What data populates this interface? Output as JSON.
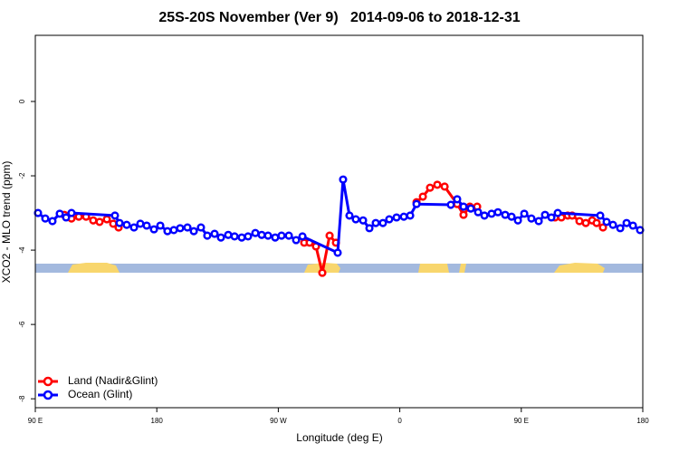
{
  "chart_data": {
    "type": "line",
    "title": "25S-20S November (Ver 9)   2014-09-06 to 2018-12-31",
    "x_label": "Longitude (deg E)",
    "y_label": "XCO2 - MLO trend (ppm)",
    "xlim": [
      90,
      540
    ],
    "xticks": [
      {
        "value": 90,
        "label": "90 E"
      },
      180,
      {
        "value": 270,
        "label": "90 W"
      },
      {
        "value": 360,
        "label": "0"
      },
      {
        "value": 450,
        "label": "90 E"
      },
      {
        "value": 540,
        "label": "180"
      }
    ],
    "ylim": [
      -8.24,
      1.78
    ],
    "yticks": [
      0,
      -2,
      -4,
      -6,
      -8
    ],
    "legend": "bottomleft",
    "series": [
      {
        "name": "Land (Nadir&Glint)",
        "color": "#ff0000",
        "x": [
          111.5,
          116.8,
          122.2,
          127.6,
          132.9,
          137.6,
          143.0,
          147.7,
          151.7,
          null,
          289.2,
          293.2,
          297.9,
          302.6,
          308.0,
          312.7,
          null,
          372.4,
          377.1,
          382.4,
          387.8,
          393.2,
          402.5,
          407.2,
          411.9,
          417.3,
          null,
          475.0,
          479.7,
          484.4,
          487.7,
          493.1,
          497.8,
          502.5,
          505.8,
          510.5
        ],
        "values": [
          -3.05,
          -3.15,
          -3.1,
          -3.1,
          -3.2,
          -3.24,
          -3.17,
          -3.29,
          -3.39,
          null,
          -3.8,
          -3.8,
          -3.9,
          -4.61,
          -3.61,
          -3.8,
          null,
          -2.71,
          -2.56,
          -2.32,
          -2.24,
          -2.29,
          -2.76,
          -3.05,
          -2.83,
          -2.83,
          null,
          -3.12,
          -3.12,
          -3.07,
          -3.07,
          -3.22,
          -3.27,
          -3.2,
          -3.27,
          -3.39
        ]
      },
      {
        "name": "Ocean (Glint)",
        "color": "#0000ff",
        "x": [
          92.0,
          97.4,
          102.7,
          108.1,
          112.8,
          116.8,
          149.0,
          152.4,
          157.7,
          163.1,
          167.8,
          172.5,
          177.9,
          182.6,
          187.9,
          192.6,
          197.3,
          202.7,
          207.4,
          212.7,
          217.4,
          222.8,
          227.5,
          232.9,
          237.6,
          242.9,
          247.6,
          253.0,
          257.7,
          262.4,
          267.7,
          272.4,
          277.8,
          283.2,
          287.9,
          314.0,
          318.0,
          322.7,
          327.4,
          332.8,
          337.5,
          342.2,
          347.5,
          352.2,
          357.6,
          363.0,
          367.7,
          372.4,
          397.8,
          402.5,
          407.2,
          412.6,
          418.0,
          422.7,
          428.0,
          432.7,
          438.1,
          442.8,
          447.5,
          452.2,
          457.5,
          462.9,
          467.6,
          472.3,
          477.0,
          508.5,
          513.2,
          517.9,
          523.3,
          528.0,
          532.7,
          538.0
        ],
        "values": [
          -3.0,
          -3.15,
          -3.22,
          -3.02,
          -3.12,
          -3.0,
          -3.07,
          -3.27,
          -3.32,
          -3.39,
          -3.29,
          -3.34,
          -3.44,
          -3.34,
          -3.49,
          -3.46,
          -3.41,
          -3.39,
          -3.49,
          -3.39,
          -3.61,
          -3.56,
          -3.66,
          -3.59,
          -3.63,
          -3.66,
          -3.63,
          -3.54,
          -3.59,
          -3.61,
          -3.66,
          -3.61,
          -3.61,
          -3.73,
          -3.63,
          -4.07,
          -2.1,
          -3.07,
          -3.17,
          -3.2,
          -3.41,
          -3.27,
          -3.27,
          -3.17,
          -3.12,
          -3.1,
          -3.07,
          -2.76,
          -2.78,
          -2.63,
          -2.83,
          -2.88,
          -2.98,
          -3.07,
          -3.02,
          -2.98,
          -3.05,
          -3.1,
          -3.2,
          -3.02,
          -3.15,
          -3.22,
          -3.05,
          -3.12,
          -3.0,
          -3.07,
          -3.24,
          -3.32,
          -3.41,
          -3.27,
          -3.34,
          -3.46
        ]
      }
    ]
  }
}
